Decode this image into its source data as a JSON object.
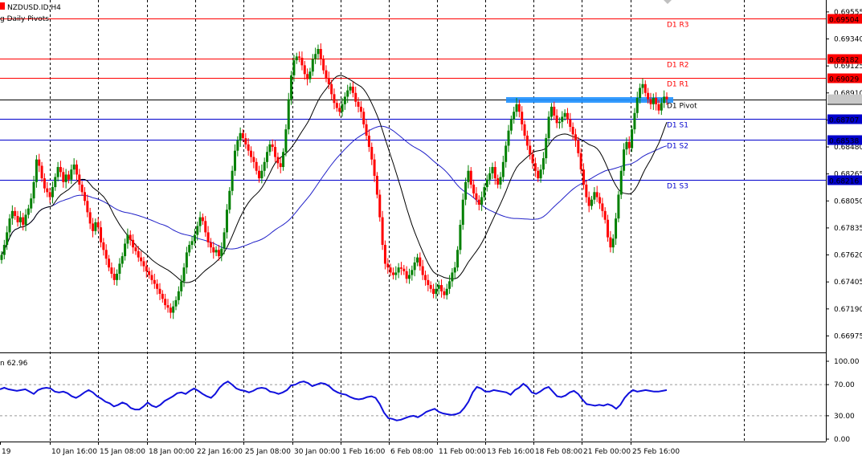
{
  "header": {
    "symbol": "NZDUSD.ID,H4",
    "indicator": "g Daily Pivots",
    "rsi_label": "n 62.96"
  },
  "colors": {
    "bull": "#008000",
    "bear": "#ff0000",
    "resistance": "#ff0000",
    "support": "#0000cc",
    "pivot": "#000000",
    "ma_fast": "#000000",
    "ma_slow": "#2020c8",
    "rsi": "#1010dd",
    "zone": "#1e90ff",
    "current_price_bg": "#000000"
  },
  "chart_data": [
    {
      "type": "candlestick",
      "title": "NZDUSD.ID,H4",
      "ylim": [
        0.6685,
        0.6965
      ],
      "y_ticks": [
        "0.69555",
        "0.69340",
        "0.69125",
        "0.68910",
        "0.68695",
        "0.68480",
        "0.68265",
        "0.68050",
        "0.67835",
        "0.67620",
        "0.67405",
        "0.67190",
        "0.66975"
      ],
      "x_ticks": [
        "19",
        "10 Jan 16:00",
        "15 Jan 08:00",
        "18 Jan 00:00",
        "22 Jan 16:00",
        "25 Jan 08:00",
        "30 Jan 00:00",
        "1 Feb 16:00",
        "6 Feb 08:00",
        "11 Feb 00:00",
        "13 Feb 16:00",
        "18 Feb 08:00",
        "21 Feb 00:00",
        "25 Feb 16:00"
      ],
      "grid": "vertical dashed",
      "pivot_levels": [
        {
          "label": "D1 R3",
          "value": 0.69504,
          "tag": "0.69504",
          "kind": "resistance"
        },
        {
          "label": "D1 R2",
          "value": 0.69182,
          "tag": "0.69182",
          "kind": "resistance"
        },
        {
          "label": "D1 R1",
          "value": 0.69029,
          "tag": "0.69029",
          "kind": "resistance"
        },
        {
          "label": "D1 Pivot",
          "value": 0.6886,
          "tag": "0.68860",
          "kind": "pivot"
        },
        {
          "label": "D1 S1",
          "value": 0.68707,
          "tag": "0.68707",
          "kind": "support"
        },
        {
          "label": "D1 S2",
          "value": 0.68538,
          "tag": "0.68538",
          "kind": "support"
        },
        {
          "label": "D1 S3",
          "value": 0.68216,
          "tag": "0.68216",
          "kind": "support"
        }
      ],
      "candles_close": [
        0.6762,
        0.677,
        0.678,
        0.6791,
        0.6797,
        0.6793,
        0.6788,
        0.6792,
        0.6786,
        0.6794,
        0.6799,
        0.6807,
        0.682,
        0.6838,
        0.6833,
        0.6823,
        0.6815,
        0.6812,
        0.6808,
        0.6816,
        0.6824,
        0.6832,
        0.6828,
        0.682,
        0.6826,
        0.6822,
        0.683,
        0.6834,
        0.6826,
        0.6818,
        0.6812,
        0.6805,
        0.6796,
        0.6787,
        0.6781,
        0.6788,
        0.6784,
        0.6772,
        0.6766,
        0.6759,
        0.6752,
        0.6747,
        0.6742,
        0.6747,
        0.6755,
        0.6761,
        0.6771,
        0.6778,
        0.6774,
        0.6768,
        0.6765,
        0.676,
        0.6757,
        0.6753,
        0.6749,
        0.6746,
        0.6742,
        0.6739,
        0.6735,
        0.6731,
        0.6727,
        0.6722,
        0.672,
        0.6716,
        0.6721,
        0.6726,
        0.6733,
        0.6741,
        0.6752,
        0.6764,
        0.677,
        0.6773,
        0.6778,
        0.6785,
        0.6792,
        0.6789,
        0.678,
        0.6772,
        0.6768,
        0.6764,
        0.6766,
        0.6761,
        0.6767,
        0.678,
        0.6798,
        0.6813,
        0.6829,
        0.6845,
        0.6853,
        0.6859,
        0.6855,
        0.685,
        0.6845,
        0.684,
        0.6836,
        0.6829,
        0.6823,
        0.6829,
        0.6836,
        0.6844,
        0.685,
        0.6848,
        0.684,
        0.6835,
        0.6832,
        0.6844,
        0.6862,
        0.6886,
        0.6905,
        0.6917,
        0.692,
        0.6919,
        0.6913,
        0.6906,
        0.6902,
        0.6908,
        0.6918,
        0.6922,
        0.6926,
        0.6918,
        0.6909,
        0.6903,
        0.6898,
        0.689,
        0.6883,
        0.6879,
        0.6876,
        0.6882,
        0.6888,
        0.6893,
        0.6896,
        0.6891,
        0.6884,
        0.688,
        0.6876,
        0.6866,
        0.6857,
        0.6848,
        0.6838,
        0.6825,
        0.681,
        0.6792,
        0.677,
        0.6755,
        0.6752,
        0.6748,
        0.6746,
        0.6748,
        0.6752,
        0.6751,
        0.6749,
        0.6743,
        0.6746,
        0.675,
        0.6756,
        0.676,
        0.6753,
        0.6746,
        0.6742,
        0.6738,
        0.6735,
        0.6731,
        0.6735,
        0.6738,
        0.6733,
        0.673,
        0.6735,
        0.6741,
        0.6748,
        0.6752,
        0.6766,
        0.6786,
        0.6806,
        0.682,
        0.6829,
        0.6818,
        0.6811,
        0.6806,
        0.6802,
        0.6808,
        0.6816,
        0.6822,
        0.6827,
        0.6832,
        0.6823,
        0.6818,
        0.6824,
        0.6836,
        0.6849,
        0.6861,
        0.687,
        0.6876,
        0.6882,
        0.6876,
        0.6866,
        0.6857,
        0.6849,
        0.6842,
        0.6835,
        0.6829,
        0.6823,
        0.683,
        0.6839,
        0.6855,
        0.6872,
        0.688,
        0.6873,
        0.6867,
        0.6868,
        0.6872,
        0.6875,
        0.687,
        0.6864,
        0.6858,
        0.6853,
        0.6843,
        0.683,
        0.6818,
        0.6808,
        0.6801,
        0.6806,
        0.6812,
        0.6808,
        0.6803,
        0.6797,
        0.679,
        0.6776,
        0.6768,
        0.6775,
        0.6791,
        0.681,
        0.6829,
        0.6846,
        0.6852,
        0.6847,
        0.6862,
        0.6875,
        0.6887,
        0.6895,
        0.6898,
        0.6891,
        0.6886,
        0.6882,
        0.6887,
        0.6882,
        0.6877,
        0.6883,
        0.6888,
        0.6886
      ]
    },
    {
      "type": "line",
      "title": "n 62.96",
      "ylim": [
        0,
        100
      ],
      "y_ticks": [
        "100.00",
        "70.00",
        "30.00",
        "0.00"
      ],
      "levels": [
        70,
        30
      ],
      "values": [
        64,
        66,
        64,
        63,
        62,
        63,
        64,
        61,
        58,
        63,
        65,
        66,
        65,
        61,
        60,
        61,
        59,
        55,
        53,
        56,
        60,
        63,
        60,
        55,
        52,
        48,
        46,
        42,
        44,
        47,
        45,
        40,
        38,
        38,
        42,
        47,
        43,
        41,
        44,
        49,
        52,
        55,
        59,
        60,
        58,
        62,
        65,
        62,
        58,
        55,
        53,
        58,
        66,
        71,
        74,
        70,
        65,
        63,
        62,
        60,
        62,
        65,
        66,
        65,
        61,
        60,
        58,
        60,
        63,
        69,
        70,
        73,
        74,
        72,
        68,
        70,
        72,
        71,
        68,
        63,
        60,
        58,
        57,
        54,
        52,
        51,
        52,
        54,
        55,
        53,
        45,
        34,
        27,
        26,
        24,
        25,
        27,
        29,
        30,
        28,
        31,
        35,
        37,
        39,
        35,
        33,
        32,
        31,
        32,
        34,
        40,
        48,
        60,
        67,
        65,
        61,
        61,
        63,
        62,
        61,
        60,
        57,
        63,
        66,
        71,
        67,
        60,
        58,
        61,
        65,
        67,
        61,
        55,
        54,
        56,
        60,
        62,
        58,
        51,
        45,
        44,
        43,
        44,
        43,
        45,
        43,
        39,
        44,
        53,
        59,
        63,
        61,
        62,
        63,
        62,
        61,
        61,
        62,
        63
      ]
    }
  ]
}
